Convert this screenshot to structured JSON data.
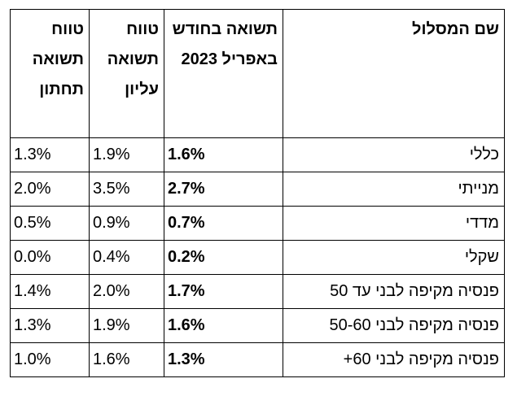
{
  "table": {
    "headers": {
      "name": "שם המסלול",
      "april_return": "תשואה בחודש באפריל 2023",
      "upper_range": "טווח תשואה עליון",
      "lower_range": "טווח תשואה תחתון"
    },
    "rows": [
      {
        "name": "כללי",
        "april": "1.6%",
        "upper": "1.9%",
        "lower": "1.3%"
      },
      {
        "name": "מנייתי",
        "april": "2.7%",
        "upper": "3.5%",
        "lower": "2.0%"
      },
      {
        "name": "מדדי",
        "april": "0.7%",
        "upper": "0.9%",
        "lower": "0.5%"
      },
      {
        "name": "שקלי",
        "april": "0.2%",
        "upper": "0.4%",
        "lower": "0.0%"
      },
      {
        "name": "פנסיה מקיפה לבני עד 50",
        "april": "1.7%",
        "upper": "2.0%",
        "lower": "1.4%"
      },
      {
        "name": "פנסיה מקיפה לבני 50-60",
        "april": "1.6%",
        "upper": "1.9%",
        "lower": "1.3%"
      },
      {
        "name": "פנסיה מקיפה לבני 60+",
        "april": "1.3%",
        "upper": "1.6%",
        "lower": "1.0%"
      }
    ]
  }
}
